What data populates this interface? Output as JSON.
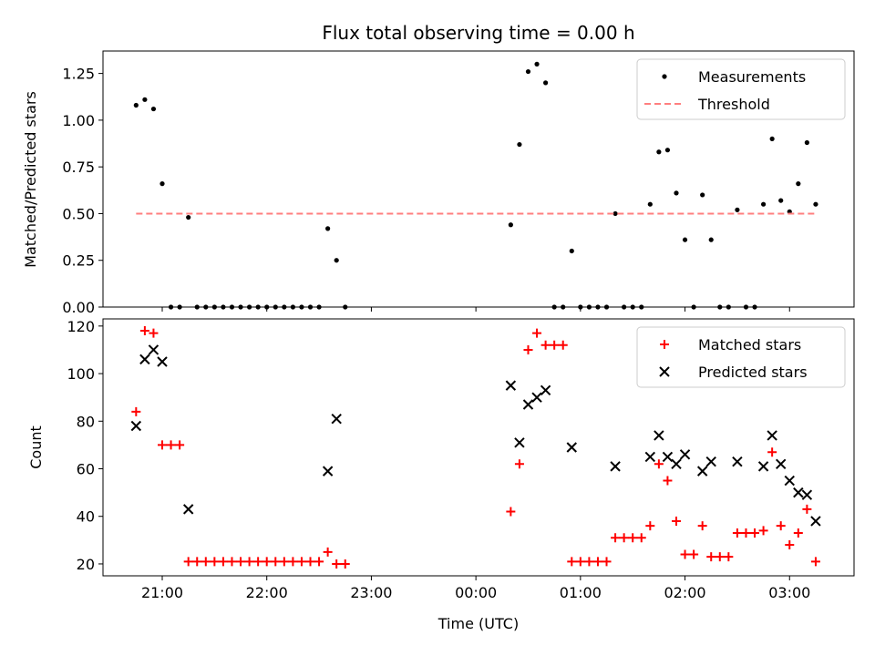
{
  "chart_data": [
    {
      "type": "scatter",
      "title": "Flux total observing time = 0.00 h",
      "xlabel": "",
      "ylabel": "Matched/Predicted stars",
      "xlim": [
        "20:26",
        "03:37"
      ],
      "ylim": [
        0,
        1.37
      ],
      "yticks": [
        "0.00",
        "0.25",
        "0.50",
        "0.75",
        "1.00",
        "1.25"
      ],
      "xticks": [
        "21:00",
        "22:00",
        "23:00",
        "00:00",
        "01:00",
        "02:00",
        "03:00"
      ],
      "show_x_ticklabels": false,
      "legend": {
        "placement": "top-right",
        "entries": [
          "Measurements",
          "Threshold"
        ]
      },
      "colors": {
        "measurements": "#000000",
        "threshold": "#ff7f7f"
      },
      "series": [
        {
          "name": "Measurements",
          "marker": "dot",
          "points": [
            [
              "20:45",
              1.08
            ],
            [
              "20:50",
              1.11
            ],
            [
              "20:55",
              1.06
            ],
            [
              "21:00",
              0.66
            ],
            [
              "21:05",
              0.0
            ],
            [
              "21:10",
              0.0
            ],
            [
              "21:15",
              0.48
            ],
            [
              "21:20",
              0.0
            ],
            [
              "21:25",
              0.0
            ],
            [
              "21:30",
              0.0
            ],
            [
              "21:35",
              0.0
            ],
            [
              "21:40",
              0.0
            ],
            [
              "21:45",
              0.0
            ],
            [
              "21:50",
              0.0
            ],
            [
              "21:55",
              0.0
            ],
            [
              "22:00",
              0.0
            ],
            [
              "22:05",
              0.0
            ],
            [
              "22:10",
              0.0
            ],
            [
              "22:15",
              0.0
            ],
            [
              "22:20",
              0.0
            ],
            [
              "22:25",
              0.0
            ],
            [
              "22:30",
              0.0
            ],
            [
              "22:35",
              0.42
            ],
            [
              "22:40",
              0.25
            ],
            [
              "22:45",
              0.0
            ],
            [
              "00:20",
              0.44
            ],
            [
              "00:25",
              0.87
            ],
            [
              "00:30",
              1.26
            ],
            [
              "00:35",
              1.3
            ],
            [
              "00:40",
              1.2
            ],
            [
              "00:45",
              0.0
            ],
            [
              "00:50",
              0.0
            ],
            [
              "00:55",
              0.3
            ],
            [
              "01:00",
              0.0
            ],
            [
              "01:05",
              0.0
            ],
            [
              "01:10",
              0.0
            ],
            [
              "01:15",
              0.0
            ],
            [
              "01:20",
              0.5
            ],
            [
              "01:25",
              0.0
            ],
            [
              "01:30",
              0.0
            ],
            [
              "01:35",
              0.0
            ],
            [
              "01:40",
              0.55
            ],
            [
              "01:45",
              0.83
            ],
            [
              "01:50",
              0.84
            ],
            [
              "01:55",
              0.61
            ],
            [
              "02:00",
              0.36
            ],
            [
              "02:05",
              0.0
            ],
            [
              "02:10",
              0.6
            ],
            [
              "02:15",
              0.36
            ],
            [
              "02:20",
              0.0
            ],
            [
              "02:25",
              0.0
            ],
            [
              "02:30",
              0.52
            ],
            [
              "02:35",
              0.0
            ],
            [
              "02:40",
              0.0
            ],
            [
              "02:45",
              0.55
            ],
            [
              "02:50",
              0.9
            ],
            [
              "02:55",
              0.57
            ],
            [
              "03:00",
              0.51
            ],
            [
              "03:05",
              0.66
            ],
            [
              "03:10",
              0.88
            ],
            [
              "03:15",
              0.55
            ]
          ]
        },
        {
          "name": "Threshold",
          "style": "dashed-line",
          "points": [
            [
              "20:45",
              0.5
            ],
            [
              "03:15",
              0.5
            ]
          ]
        }
      ]
    },
    {
      "type": "scatter",
      "title": "",
      "xlabel": "Time (UTC)",
      "ylabel": "Count",
      "xlim": [
        "20:26",
        "03:37"
      ],
      "ylim": [
        15,
        123
      ],
      "yticks": [
        "20",
        "40",
        "60",
        "80",
        "100",
        "120"
      ],
      "xticks": [
        "21:00",
        "22:00",
        "23:00",
        "00:00",
        "01:00",
        "02:00",
        "03:00"
      ],
      "show_x_ticklabels": true,
      "legend": {
        "placement": "top-right",
        "entries": [
          "Matched stars",
          "Predicted stars"
        ]
      },
      "colors": {
        "matched": "#ff0000",
        "predicted": "#000000"
      },
      "series": [
        {
          "name": "Matched stars",
          "marker": "plus",
          "points": [
            [
              "20:45",
              84
            ],
            [
              "20:50",
              118
            ],
            [
              "20:55",
              117
            ],
            [
              "21:00",
              70
            ],
            [
              "21:05",
              70
            ],
            [
              "21:10",
              70
            ],
            [
              "21:15",
              21
            ],
            [
              "21:20",
              21
            ],
            [
              "21:25",
              21
            ],
            [
              "21:30",
              21
            ],
            [
              "21:35",
              21
            ],
            [
              "21:40",
              21
            ],
            [
              "21:45",
              21
            ],
            [
              "21:50",
              21
            ],
            [
              "21:55",
              21
            ],
            [
              "22:00",
              21
            ],
            [
              "22:05",
              21
            ],
            [
              "22:10",
              21
            ],
            [
              "22:15",
              21
            ],
            [
              "22:20",
              21
            ],
            [
              "22:25",
              21
            ],
            [
              "22:30",
              21
            ],
            [
              "22:35",
              25
            ],
            [
              "22:40",
              20
            ],
            [
              "22:45",
              20
            ],
            [
              "00:20",
              42
            ],
            [
              "00:25",
              62
            ],
            [
              "00:30",
              110
            ],
            [
              "00:35",
              117
            ],
            [
              "00:40",
              112
            ],
            [
              "00:45",
              112
            ],
            [
              "00:50",
              112
            ],
            [
              "00:55",
              21
            ],
            [
              "01:00",
              21
            ],
            [
              "01:05",
              21
            ],
            [
              "01:10",
              21
            ],
            [
              "01:15",
              21
            ],
            [
              "01:20",
              31
            ],
            [
              "01:25",
              31
            ],
            [
              "01:30",
              31
            ],
            [
              "01:35",
              31
            ],
            [
              "01:40",
              36
            ],
            [
              "01:45",
              62
            ],
            [
              "01:50",
              55
            ],
            [
              "01:55",
              38
            ],
            [
              "02:00",
              24
            ],
            [
              "02:05",
              24
            ],
            [
              "02:10",
              36
            ],
            [
              "02:15",
              23
            ],
            [
              "02:20",
              23
            ],
            [
              "02:25",
              23
            ],
            [
              "02:30",
              33
            ],
            [
              "02:35",
              33
            ],
            [
              "02:40",
              33
            ],
            [
              "02:45",
              34
            ],
            [
              "02:50",
              67
            ],
            [
              "02:55",
              36
            ],
            [
              "03:00",
              28
            ],
            [
              "03:05",
              33
            ],
            [
              "03:10",
              43
            ],
            [
              "03:15",
              21
            ]
          ]
        },
        {
          "name": "Predicted stars",
          "marker": "x",
          "points": [
            [
              "20:45",
              78
            ],
            [
              "20:50",
              106
            ],
            [
              "20:55",
              110
            ],
            [
              "21:00",
              105
            ],
            [
              "21:15",
              43
            ],
            [
              "22:35",
              59
            ],
            [
              "22:40",
              81
            ],
            [
              "00:20",
              95
            ],
            [
              "00:25",
              71
            ],
            [
              "00:30",
              87
            ],
            [
              "00:35",
              90
            ],
            [
              "00:40",
              93
            ],
            [
              "00:55",
              69
            ],
            [
              "01:20",
              61
            ],
            [
              "01:40",
              65
            ],
            [
              "01:45",
              74
            ],
            [
              "01:50",
              65
            ],
            [
              "01:55",
              62
            ],
            [
              "02:00",
              66
            ],
            [
              "02:10",
              59
            ],
            [
              "02:15",
              63
            ],
            [
              "02:30",
              63
            ],
            [
              "02:45",
              61
            ],
            [
              "02:50",
              74
            ],
            [
              "02:55",
              62
            ],
            [
              "03:00",
              55
            ],
            [
              "03:05",
              50
            ],
            [
              "03:10",
              49
            ],
            [
              "03:15",
              38
            ]
          ]
        }
      ]
    }
  ]
}
